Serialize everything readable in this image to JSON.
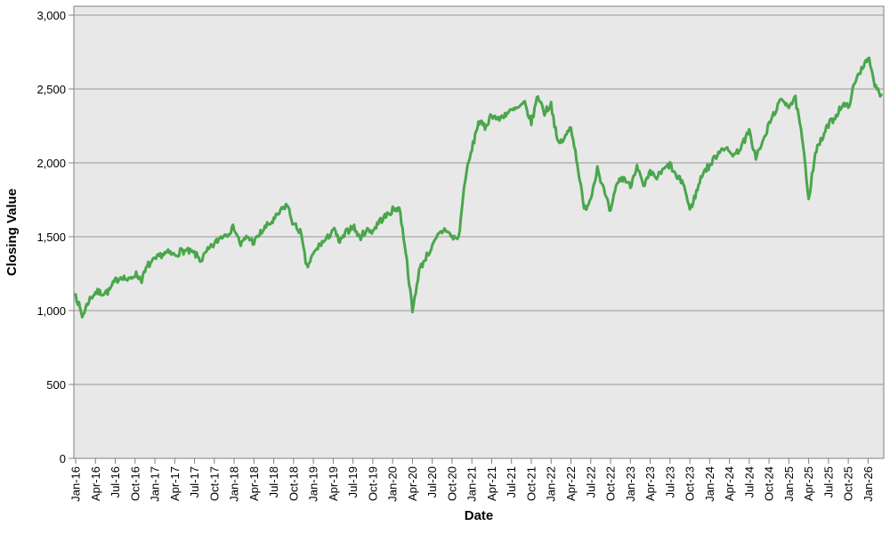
{
  "chart": {
    "ylabel": "Closing Value",
    "xlabel": "Date",
    "colors": {
      "line": "#4aa64c",
      "plot_bg": "#e8e8e8",
      "gridline": "#999999",
      "border": "#808080",
      "text": "#000000",
      "page_bg": "#ffffff"
    }
  },
  "chart_data": {
    "type": "line",
    "title": "",
    "xlabel": "Date",
    "ylabel": "Closing Value",
    "legend": "none",
    "grid": "horizontal",
    "ylim": [
      0,
      3000
    ],
    "y_tick_step": 500,
    "y_tick_labels": [
      "0",
      "500",
      "1,000",
      "1,500",
      "2,000",
      "2,500",
      "3,000"
    ],
    "x_tick_labels": [
      "Jan-16",
      "Apr-16",
      "Jul-16",
      "Oct-16",
      "Jan-17",
      "Apr-17",
      "Jul-17",
      "Oct-17",
      "Jan-18",
      "Apr-18",
      "Jul-18",
      "Oct-18",
      "Jan-19",
      "Apr-19",
      "Jul-19",
      "Oct-19",
      "Jan-20",
      "Apr-20",
      "Jul-20",
      "Oct-20",
      "Jan-21",
      "Apr-21",
      "Jul-21",
      "Oct-21",
      "Jan-22",
      "Apr-22",
      "Jul-22",
      "Oct-22",
      "Jan-23",
      "Apr-23",
      "Jul-23",
      "Oct-23",
      "Jan-24",
      "Apr-24",
      "Jul-24",
      "Oct-24",
      "Jan-25",
      "Apr-25",
      "Jul-25",
      "Oct-25",
      "Jan-26"
    ],
    "series": [
      {
        "name": "Closing Value",
        "sampling": "monthly anchor values read from chart, Jan-2016 through Mar-2026; rendered with small high-frequency jitter to mimic daily closes",
        "x_start_label": "Jan-16",
        "x_end_label": "Mar-26",
        "values": [
          1110,
          960,
          1070,
          1125,
          1120,
          1130,
          1200,
          1235,
          1200,
          1250,
          1210,
          1310,
          1340,
          1380,
          1390,
          1375,
          1405,
          1400,
          1385,
          1340,
          1405,
          1450,
          1500,
          1525,
          1565,
          1445,
          1500,
          1460,
          1525,
          1575,
          1610,
          1670,
          1720,
          1580,
          1540,
          1290,
          1380,
          1450,
          1480,
          1555,
          1460,
          1530,
          1575,
          1490,
          1545,
          1540,
          1605,
          1640,
          1680,
          1700,
          1400,
          990,
          1270,
          1360,
          1430,
          1515,
          1555,
          1495,
          1490,
          1900,
          2090,
          2280,
          2240,
          2330,
          2290,
          2330,
          2350,
          2370,
          2400,
          2270,
          2460,
          2340,
          2400,
          2130,
          2160,
          2250,
          1990,
          1680,
          1760,
          1970,
          1810,
          1660,
          1870,
          1900,
          1840,
          1990,
          1830,
          1930,
          1900,
          1950,
          1990,
          1900,
          1870,
          1680,
          1800,
          1940,
          1980,
          2050,
          2110,
          2070,
          2060,
          2130,
          2210,
          2040,
          2130,
          2260,
          2360,
          2430,
          2390,
          2430,
          2170,
          1760,
          2070,
          2160,
          2260,
          2310,
          2390,
          2380,
          2540,
          2640,
          2720,
          2520,
          2460
        ]
      }
    ]
  }
}
